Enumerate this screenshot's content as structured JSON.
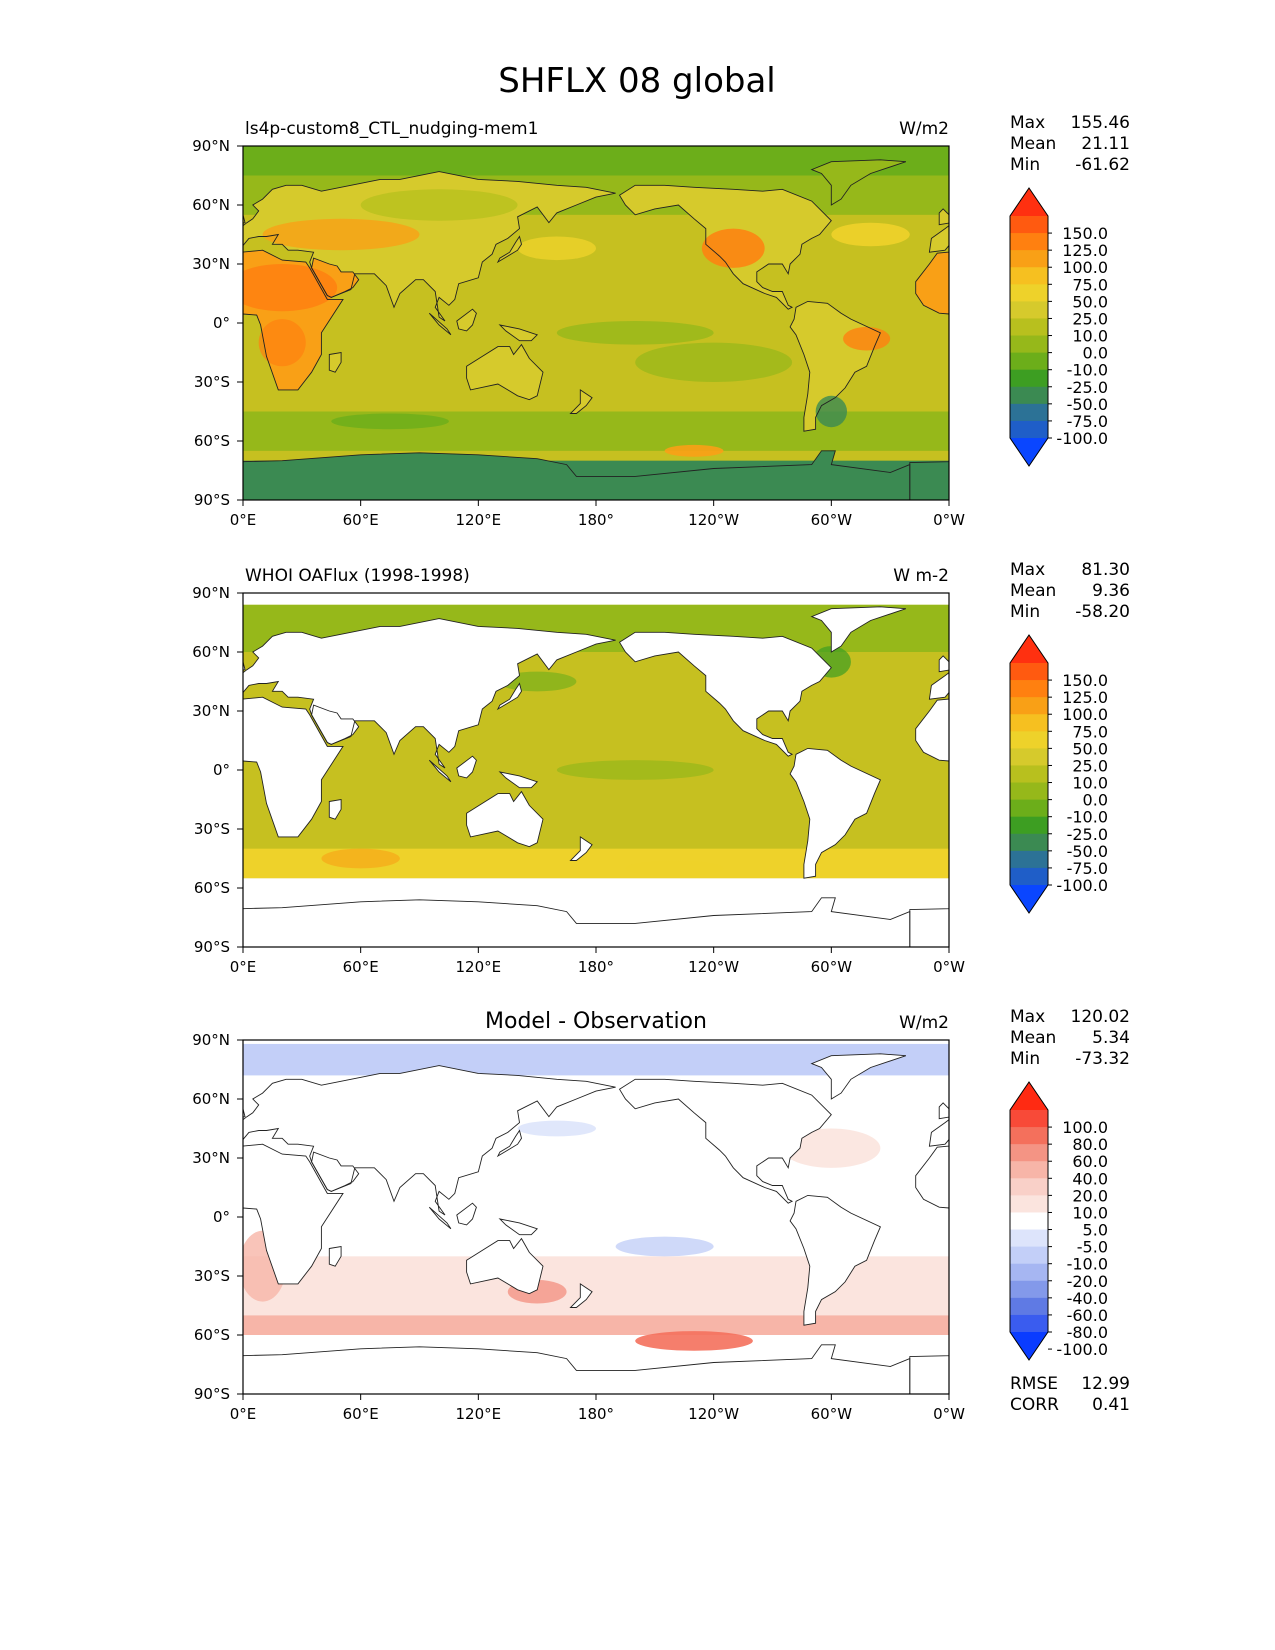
{
  "page": {
    "title": "SHFLX 08 global"
  },
  "chart_data": [
    {
      "type": "heatmap",
      "id": "model",
      "title": "",
      "left_label": "ls4p-custom8_CTL_nudging-mem1",
      "units": "W/m2",
      "stats": [
        {
          "label": "Max",
          "value": "155.46"
        },
        {
          "label": "Mean",
          "value": "21.11"
        },
        {
          "label": "Min",
          "value": "-61.62"
        }
      ],
      "x_ticks": [
        "0°E",
        "60°E",
        "120°E",
        "180°",
        "120°W",
        "60°W",
        "0°W"
      ],
      "y_ticks": [
        "90°N",
        "60°N",
        "30°N",
        "0°",
        "30°S",
        "60°S",
        "90°S"
      ],
      "xlim_deg_east": [
        0,
        360
      ],
      "ylim_deg_north": [
        -90,
        90
      ],
      "colorbar": {
        "labels": [
          "150.0",
          "125.0",
          "100.0",
          "75.0",
          "50.0",
          "25.0",
          "10.0",
          "0.0",
          "-10.0",
          "-25.0",
          "-50.0",
          "-75.0",
          "-100.0"
        ],
        "colors": [
          "#ff3010",
          "#ff5a10",
          "#ff8010",
          "#f9a016",
          "#f6c020",
          "#eed22a",
          "#d6ca2c",
          "#b8c01e",
          "#96b81a",
          "#6cae1a",
          "#3d9e22",
          "#3b8a52",
          "#2c7296",
          "#1f5ec8",
          "#0a46ff"
        ]
      }
    },
    {
      "type": "heatmap",
      "id": "observation",
      "title": "",
      "left_label": "WHOI OAFlux (1998-1998)",
      "units": "W m-2",
      "stats": [
        {
          "label": "Max",
          "value": "81.30"
        },
        {
          "label": "Mean",
          "value": "9.36"
        },
        {
          "label": "Min",
          "value": "-58.20"
        }
      ],
      "x_ticks": [
        "0°E",
        "60°E",
        "120°E",
        "180°",
        "120°W",
        "60°W",
        "0°W"
      ],
      "y_ticks": [
        "90°N",
        "60°N",
        "30°N",
        "0°",
        "30°S",
        "60°S",
        "90°S"
      ],
      "xlim_deg_east": [
        0,
        360
      ],
      "ylim_deg_north": [
        -90,
        90
      ],
      "colorbar": {
        "labels": [
          "150.0",
          "125.0",
          "100.0",
          "75.0",
          "50.0",
          "25.0",
          "10.0",
          "0.0",
          "-10.0",
          "-25.0",
          "-50.0",
          "-75.0",
          "-100.0"
        ],
        "colors": [
          "#ff3010",
          "#ff5a10",
          "#ff8010",
          "#f9a016",
          "#f6c020",
          "#eed22a",
          "#d6ca2c",
          "#b8c01e",
          "#96b81a",
          "#6cae1a",
          "#3d9e22",
          "#3b8a52",
          "#2c7296",
          "#1f5ec8",
          "#0a46ff"
        ]
      }
    },
    {
      "type": "heatmap",
      "id": "difference",
      "title": "Model - Observation",
      "left_label": "",
      "units": "W/m2",
      "stats": [
        {
          "label": "Max",
          "value": "120.02"
        },
        {
          "label": "Mean",
          "value": "5.34"
        },
        {
          "label": "Min",
          "value": "-73.32"
        }
      ],
      "extra_stats": [
        {
          "label": "RMSE",
          "value": "12.99"
        },
        {
          "label": "CORR",
          "value": "0.41"
        }
      ],
      "x_ticks": [
        "0°E",
        "60°E",
        "120°E",
        "180°",
        "120°W",
        "60°W",
        "0°W"
      ],
      "y_ticks": [
        "90°N",
        "60°N",
        "30°N",
        "0°",
        "30°S",
        "60°S",
        "90°S"
      ],
      "xlim_deg_east": [
        0,
        360
      ],
      "ylim_deg_north": [
        -90,
        90
      ],
      "colorbar": {
        "labels": [
          "100.0",
          "80.0",
          "60.0",
          "40.0",
          "20.0",
          "10.0",
          "5.0",
          "-5.0",
          "-10.0",
          "-20.0",
          "-40.0",
          "-60.0",
          "-80.0",
          "-100.0"
        ],
        "colors": [
          "#ff2a12",
          "#f84a38",
          "#f4705c",
          "#f49484",
          "#f7b5a8",
          "#f9d0c8",
          "#fbe4de",
          "#ffffff",
          "#dde4fb",
          "#c3cff8",
          "#a6b6f2",
          "#8399ea",
          "#5f7ae4",
          "#3a5cef",
          "#0a3cff"
        ]
      }
    }
  ]
}
